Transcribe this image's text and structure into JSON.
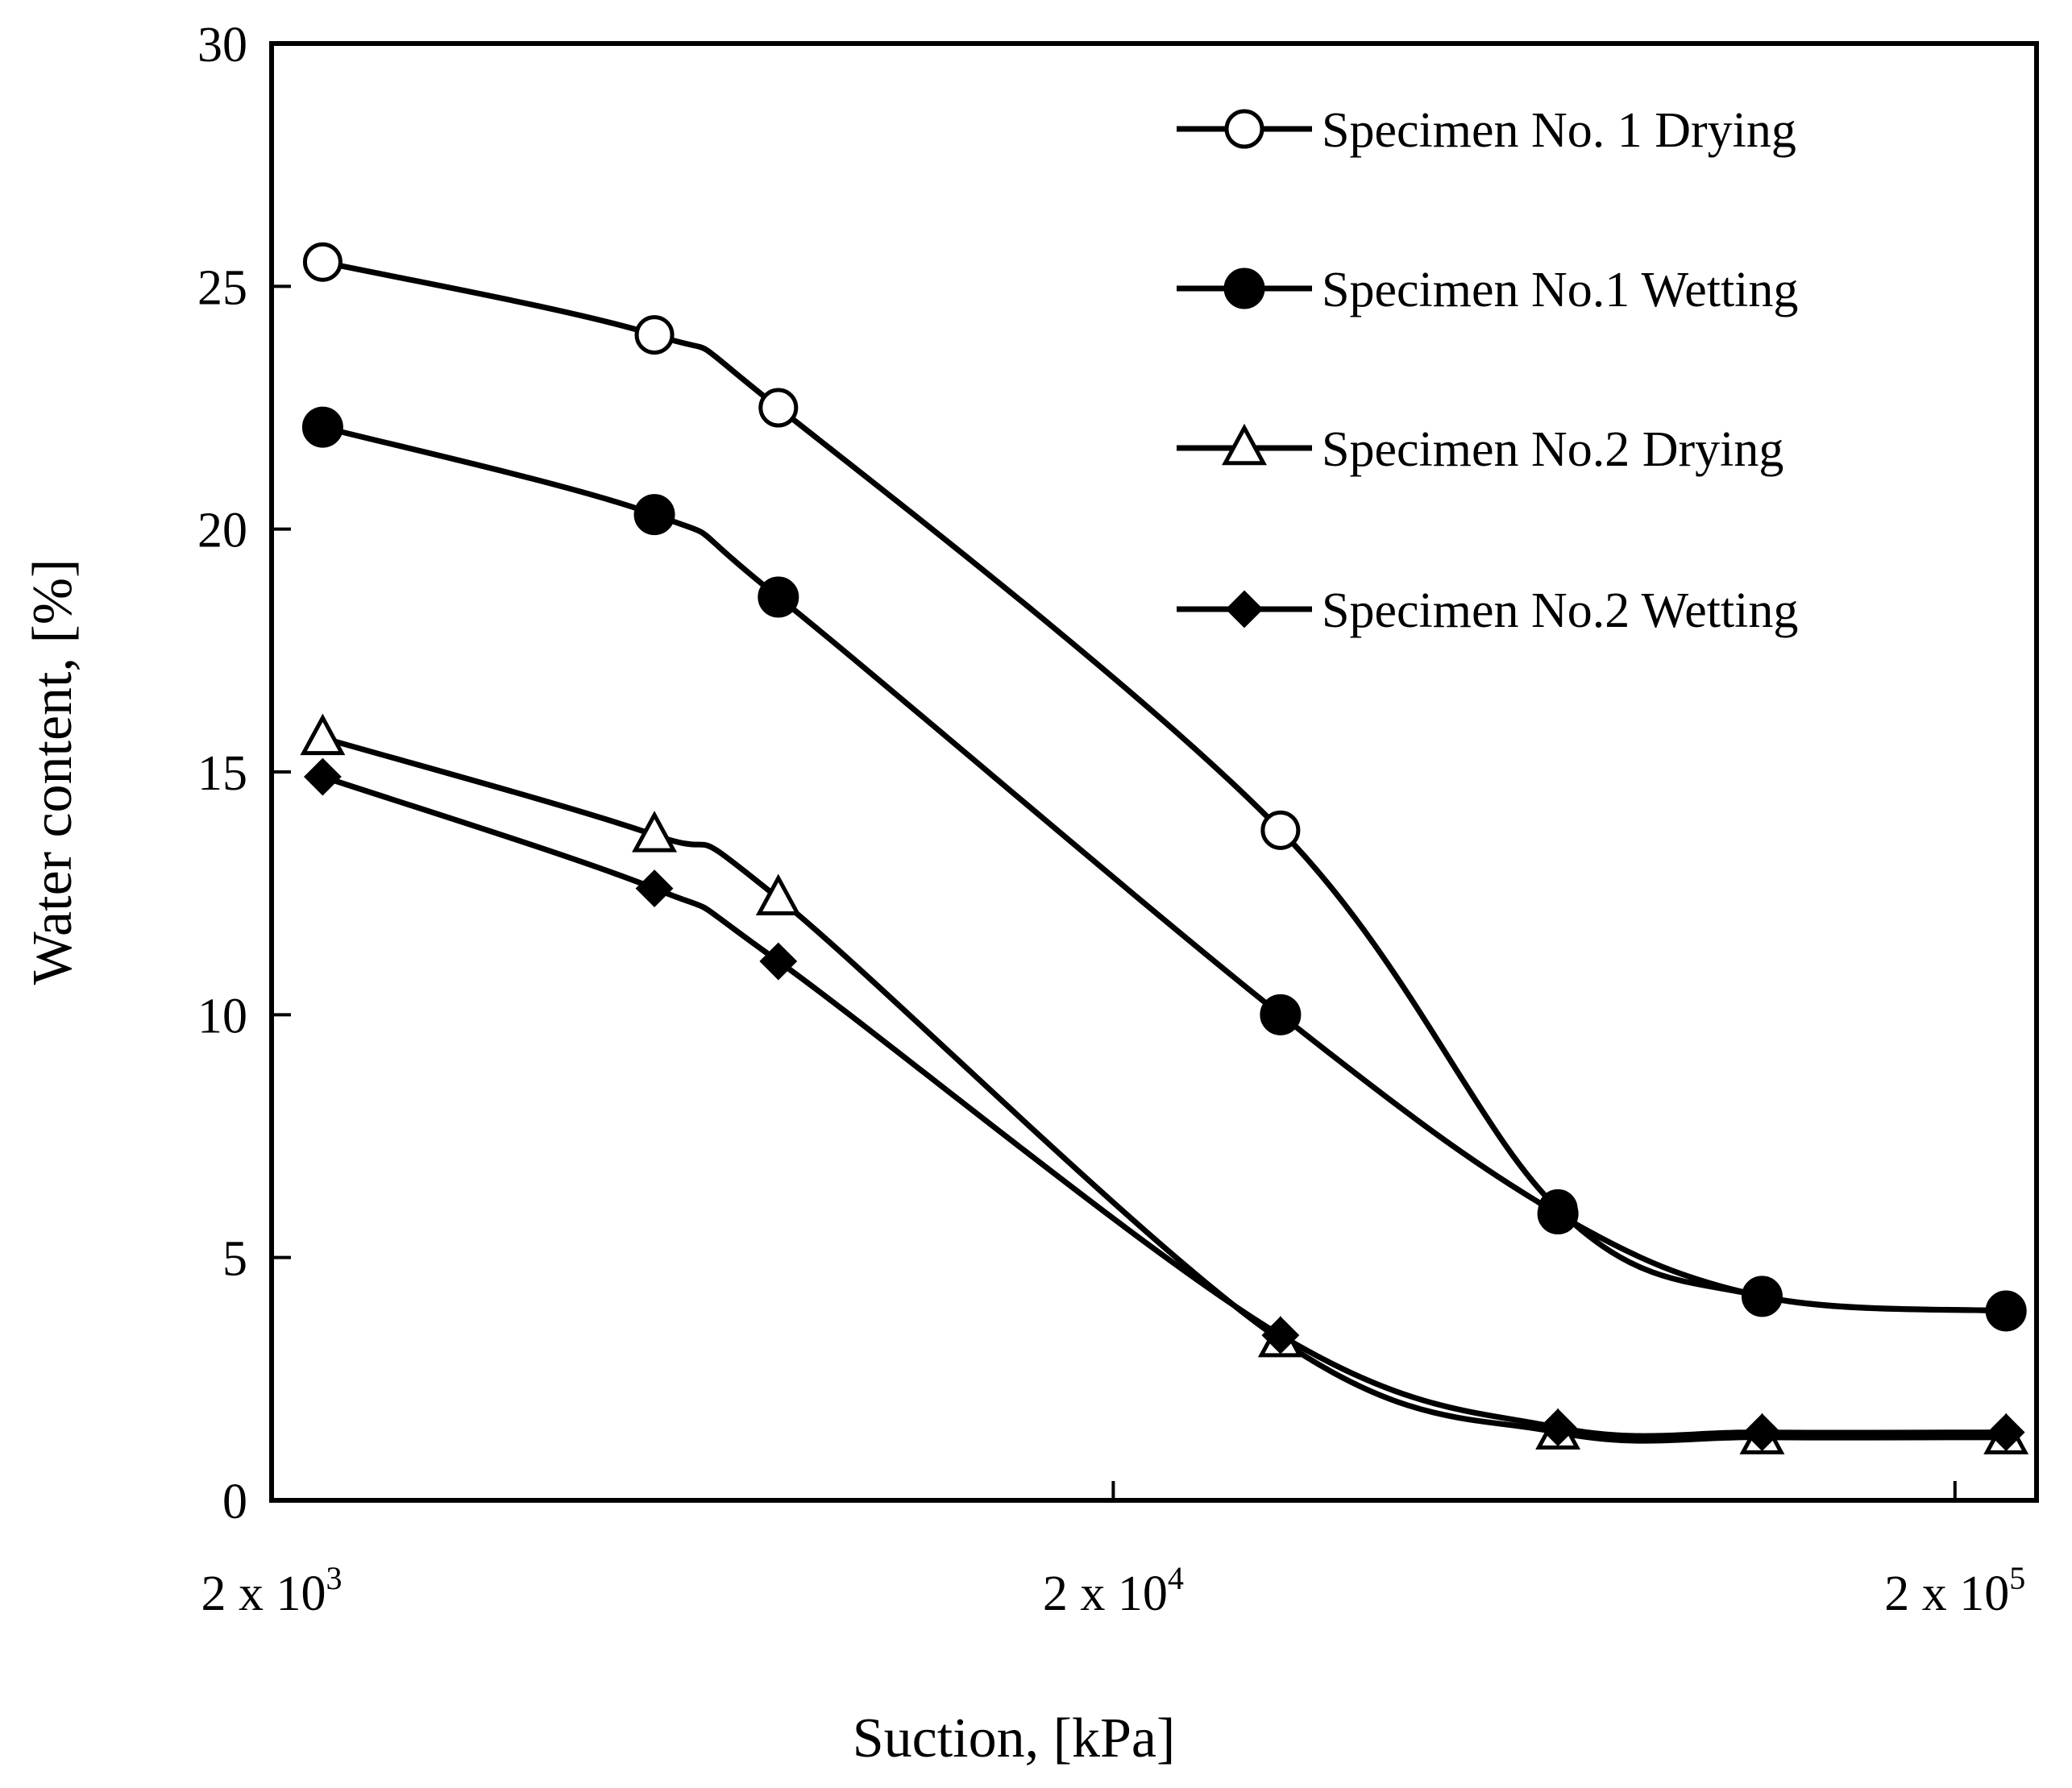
{
  "chart_data": {
    "type": "line",
    "title": "",
    "xlabel": "Suction, [kPa]",
    "ylabel": "Water content, [%]",
    "x_scale": "log",
    "xlim": [
      2000,
      250000
    ],
    "ylim": [
      0,
      30
    ],
    "y_ticks": [
      "0",
      "5",
      "10",
      "15",
      "20",
      "25",
      "30"
    ],
    "x_ticks": [
      {
        "value": 2000,
        "base": "2 x 10",
        "exp": "3"
      },
      {
        "value": 20000,
        "base": "2 x 10",
        "exp": "4"
      },
      {
        "value": 200000,
        "base": "2 x 10",
        "exp": "5"
      }
    ],
    "grid": false,
    "legend_position": "top-right",
    "series": [
      {
        "name": "Specimen No. 1 Drying",
        "marker": "open-circle",
        "x": [
          2300,
          5700,
          8000,
          31600,
          67500,
          118000,
          230000
        ],
        "y": [
          25.5,
          24.0,
          22.5,
          13.8,
          6.0,
          4.2,
          3.9
        ]
      },
      {
        "name": "Specimen No.1 Wetting",
        "marker": "filled-circle",
        "x": [
          2300,
          5700,
          8000,
          31600,
          67500,
          118000,
          230000
        ],
        "y": [
          22.1,
          20.3,
          18.6,
          10.0,
          5.9,
          4.2,
          3.9
        ]
      },
      {
        "name": "Specimen No.2 Drying",
        "marker": "open-triangle",
        "x": [
          2300,
          5700,
          8000,
          31600,
          67500,
          118000,
          230000
        ],
        "y": [
          15.7,
          13.7,
          12.4,
          3.3,
          1.4,
          1.3,
          1.3
        ]
      },
      {
        "name": "Specimen No.2 Wetting",
        "marker": "filled-diamond",
        "x": [
          2300,
          5700,
          8000,
          31600,
          67500,
          118000,
          230000
        ],
        "y": [
          14.9,
          12.6,
          11.1,
          3.4,
          1.5,
          1.4,
          1.4
        ]
      }
    ]
  }
}
